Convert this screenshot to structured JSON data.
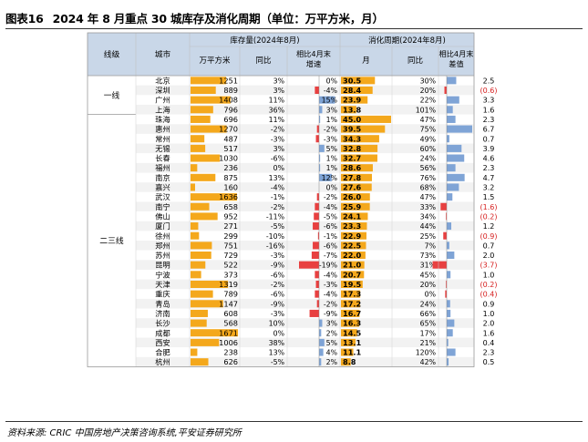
{
  "title": {
    "number": "图表16",
    "text": "2024 年 8 月重点 30 城库存及消化周期（单位：万平方米，月）"
  },
  "source": "资料来源: CRIC 中国房地产决策咨询系统,平安证券研究所",
  "colors": {
    "header_bg": "#c9d7e8",
    "row_alt": "#f2f2f2",
    "bar_orange": "#f4a81c",
    "bar_red": "#e84040",
    "bar_blue": "#7fa4d6",
    "neg_text": "#d62020",
    "grid": "#c0c0c0"
  },
  "headers": {
    "tier": "线级",
    "city": "城市",
    "inventory_group": "库存量(2024年8月)",
    "inv_value": "万平方米",
    "inv_yoy": "同比",
    "inv_change": "相比4月末增速",
    "cycle_group": "消化周期(2024年8月)",
    "cycle_value": "月",
    "cycle_yoy": "同比",
    "cycle_diff": "相比4月末差值"
  },
  "tiers": [
    {
      "label": "一线",
      "rows": 4
    },
    {
      "label": "二三线",
      "rows": 26
    }
  ],
  "chart_data": {
    "type": "table",
    "title": "2024 年 8 月重点 30 城库存及消化周期（单位：万平方米，月）",
    "columns": [
      "城市",
      "万平方米",
      "同比",
      "相比4月末增速",
      "月",
      "同比",
      "相比4月末差值"
    ],
    "rows": [
      {
        "tier": "一线",
        "city": "北京",
        "inv": 1251,
        "inv_yoy": "3%",
        "inv_chg": "0%",
        "inv_chg_v": 0,
        "cyc": "30.5",
        "cyc_v": 30.5,
        "cyc_yoy": "30%",
        "cyc_diff": "2.5",
        "cyc_diff_v": 2.5
      },
      {
        "tier": "一线",
        "city": "深圳",
        "inv": 889,
        "inv_yoy": "3%",
        "inv_chg": "-4%",
        "inv_chg_v": -4,
        "cyc": "28.4",
        "cyc_v": 28.4,
        "cyc_yoy": "20%",
        "cyc_diff": "(0.6)",
        "cyc_diff_v": -0.6
      },
      {
        "tier": "一线",
        "city": "广州",
        "inv": 1408,
        "inv_yoy": "11%",
        "inv_chg": "15%",
        "inv_chg_v": 15,
        "cyc": "23.9",
        "cyc_v": 23.9,
        "cyc_yoy": "22%",
        "cyc_diff": "3.3",
        "cyc_diff_v": 3.3
      },
      {
        "tier": "一线",
        "city": "上海",
        "inv": 796,
        "inv_yoy": "36%",
        "inv_chg": "3%",
        "inv_chg_v": 3,
        "cyc": "13.8",
        "cyc_v": 13.8,
        "cyc_yoy": "101%",
        "cyc_diff": "1.6",
        "cyc_diff_v": 1.6
      },
      {
        "tier": "二三线",
        "city": "珠海",
        "inv": 696,
        "inv_yoy": "11%",
        "inv_chg": "1%",
        "inv_chg_v": 1,
        "cyc": "45.0",
        "cyc_v": 45.0,
        "cyc_yoy": "47%",
        "cyc_diff": "2.3",
        "cyc_diff_v": 2.3
      },
      {
        "tier": "二三线",
        "city": "惠州",
        "inv": 1270,
        "inv_yoy": "-2%",
        "inv_chg": "-2%",
        "inv_chg_v": -2,
        "cyc": "39.5",
        "cyc_v": 39.5,
        "cyc_yoy": "75%",
        "cyc_diff": "6.7",
        "cyc_diff_v": 6.7
      },
      {
        "tier": "二三线",
        "city": "常州",
        "inv": 487,
        "inv_yoy": "-3%",
        "inv_chg": "-3%",
        "inv_chg_v": -3,
        "cyc": "34.3",
        "cyc_v": 34.3,
        "cyc_yoy": "49%",
        "cyc_diff": "0.7",
        "cyc_diff_v": 0.7
      },
      {
        "tier": "二三线",
        "city": "无锡",
        "inv": 517,
        "inv_yoy": "3%",
        "inv_chg": "5%",
        "inv_chg_v": 5,
        "cyc": "32.8",
        "cyc_v": 32.8,
        "cyc_yoy": "60%",
        "cyc_diff": "3.9",
        "cyc_diff_v": 3.9
      },
      {
        "tier": "二三线",
        "city": "长春",
        "inv": 1030,
        "inv_yoy": "-6%",
        "inv_chg": "1%",
        "inv_chg_v": 1,
        "cyc": "32.7",
        "cyc_v": 32.7,
        "cyc_yoy": "24%",
        "cyc_diff": "4.6",
        "cyc_diff_v": 4.6
      },
      {
        "tier": "二三线",
        "city": "福州",
        "inv": 236,
        "inv_yoy": "0%",
        "inv_chg": "1%",
        "inv_chg_v": 1,
        "cyc": "28.6",
        "cyc_v": 28.6,
        "cyc_yoy": "56%",
        "cyc_diff": "2.3",
        "cyc_diff_v": 2.3
      },
      {
        "tier": "二三线",
        "city": "南京",
        "inv": 875,
        "inv_yoy": "13%",
        "inv_chg": "12%",
        "inv_chg_v": 12,
        "cyc": "27.8",
        "cyc_v": 27.8,
        "cyc_yoy": "76%",
        "cyc_diff": "4.7",
        "cyc_diff_v": 4.7
      },
      {
        "tier": "二三线",
        "city": "嘉兴",
        "inv": 160,
        "inv_yoy": "-4%",
        "inv_chg": "0%",
        "inv_chg_v": 0,
        "cyc": "27.6",
        "cyc_v": 27.6,
        "cyc_yoy": "68%",
        "cyc_diff": "3.2",
        "cyc_diff_v": 3.2
      },
      {
        "tier": "二三线",
        "city": "武汉",
        "inv": 1636,
        "inv_yoy": "-1%",
        "inv_chg": "-2%",
        "inv_chg_v": -2,
        "cyc": "26.0",
        "cyc_v": 26.0,
        "cyc_yoy": "47%",
        "cyc_diff": "1.5",
        "cyc_diff_v": 1.5
      },
      {
        "tier": "二三线",
        "city": "南宁",
        "inv": 658,
        "inv_yoy": "-2%",
        "inv_chg": "-4%",
        "inv_chg_v": -4,
        "cyc": "25.9",
        "cyc_v": 25.9,
        "cyc_yoy": "33%",
        "cyc_diff": "(1.6)",
        "cyc_diff_v": -1.6
      },
      {
        "tier": "二三线",
        "city": "佛山",
        "inv": 952,
        "inv_yoy": "-11%",
        "inv_chg": "-5%",
        "inv_chg_v": -5,
        "cyc": "24.1",
        "cyc_v": 24.1,
        "cyc_yoy": "34%",
        "cyc_diff": "(0.2)",
        "cyc_diff_v": -0.2
      },
      {
        "tier": "二三线",
        "city": "厦门",
        "inv": 271,
        "inv_yoy": "-5%",
        "inv_chg": "-6%",
        "inv_chg_v": -6,
        "cyc": "23.3",
        "cyc_v": 23.3,
        "cyc_yoy": "44%",
        "cyc_diff": "1.2",
        "cyc_diff_v": 1.2
      },
      {
        "tier": "二三线",
        "city": "徐州",
        "inv": 299,
        "inv_yoy": "-10%",
        "inv_chg": "-1%",
        "inv_chg_v": -1,
        "cyc": "22.9",
        "cyc_v": 22.9,
        "cyc_yoy": "25%",
        "cyc_diff": "(0.9)",
        "cyc_diff_v": -0.9
      },
      {
        "tier": "二三线",
        "city": "郑州",
        "inv": 751,
        "inv_yoy": "-16%",
        "inv_chg": "-6%",
        "inv_chg_v": -6,
        "cyc": "22.5",
        "cyc_v": 22.5,
        "cyc_yoy": "7%",
        "cyc_diff": "0.7",
        "cyc_diff_v": 0.7
      },
      {
        "tier": "二三线",
        "city": "苏州",
        "inv": 729,
        "inv_yoy": "-3%",
        "inv_chg": "-7%",
        "inv_chg_v": -7,
        "cyc": "22.0",
        "cyc_v": 22.0,
        "cyc_yoy": "73%",
        "cyc_diff": "2.0",
        "cyc_diff_v": 2.0
      },
      {
        "tier": "二三线",
        "city": "昆明",
        "inv": 522,
        "inv_yoy": "-9%",
        "inv_chg": "-19%",
        "inv_chg_v": -19,
        "cyc": "21.0",
        "cyc_v": 21.0,
        "cyc_yoy": "31%",
        "cyc_diff": "(3.7)",
        "cyc_diff_v": -3.7
      },
      {
        "tier": "二三线",
        "city": "宁波",
        "inv": 373,
        "inv_yoy": "-6%",
        "inv_chg": "-4%",
        "inv_chg_v": -4,
        "cyc": "20.7",
        "cyc_v": 20.7,
        "cyc_yoy": "45%",
        "cyc_diff": "1.0",
        "cyc_diff_v": 1.0
      },
      {
        "tier": "二三线",
        "city": "天津",
        "inv": 1319,
        "inv_yoy": "-2%",
        "inv_chg": "-3%",
        "inv_chg_v": -3,
        "cyc": "19.5",
        "cyc_v": 19.5,
        "cyc_yoy": "20%",
        "cyc_diff": "(0.2)",
        "cyc_diff_v": -0.2
      },
      {
        "tier": "二三线",
        "city": "重庆",
        "inv": 789,
        "inv_yoy": "-6%",
        "inv_chg": "-4%",
        "inv_chg_v": -4,
        "cyc": "17.3",
        "cyc_v": 17.3,
        "cyc_yoy": "0%",
        "cyc_diff": "(0.4)",
        "cyc_diff_v": -0.4
      },
      {
        "tier": "二三线",
        "city": "青岛",
        "inv": 1147,
        "inv_yoy": "-9%",
        "inv_chg": "-2%",
        "inv_chg_v": -2,
        "cyc": "17.2",
        "cyc_v": 17.2,
        "cyc_yoy": "24%",
        "cyc_diff": "0.9",
        "cyc_diff_v": 0.9
      },
      {
        "tier": "二三线",
        "city": "济南",
        "inv": 608,
        "inv_yoy": "-3%",
        "inv_chg": "-9%",
        "inv_chg_v": -9,
        "cyc": "16.7",
        "cyc_v": 16.7,
        "cyc_yoy": "66%",
        "cyc_diff": "1.0",
        "cyc_diff_v": 1.0
      },
      {
        "tier": "二三线",
        "city": "长沙",
        "inv": 568,
        "inv_yoy": "10%",
        "inv_chg": "3%",
        "inv_chg_v": 3,
        "cyc": "16.3",
        "cyc_v": 16.3,
        "cyc_yoy": "65%",
        "cyc_diff": "2.0",
        "cyc_diff_v": 2.0
      },
      {
        "tier": "二三线",
        "city": "成都",
        "inv": 1671,
        "inv_yoy": "0%",
        "inv_chg": "2%",
        "inv_chg_v": 2,
        "cyc": "14.5",
        "cyc_v": 14.5,
        "cyc_yoy": "17%",
        "cyc_diff": "1.6",
        "cyc_diff_v": 1.6
      },
      {
        "tier": "二三线",
        "city": "西安",
        "inv": 1006,
        "inv_yoy": "38%",
        "inv_chg": "5%",
        "inv_chg_v": 5,
        "cyc": "13.1",
        "cyc_v": 13.1,
        "cyc_yoy": "21%",
        "cyc_diff": "0.4",
        "cyc_diff_v": 0.4
      },
      {
        "tier": "二三线",
        "city": "合肥",
        "inv": 238,
        "inv_yoy": "13%",
        "inv_chg": "4%",
        "inv_chg_v": 4,
        "cyc": "11.1",
        "cyc_v": 11.1,
        "cyc_yoy": "120%",
        "cyc_diff": "2.3",
        "cyc_diff_v": 2.3
      },
      {
        "tier": "二三线",
        "city": "杭州",
        "inv": 626,
        "inv_yoy": "-5%",
        "inv_chg": "2%",
        "inv_chg_v": 2,
        "cyc": "8.8",
        "cyc_v": 8.8,
        "cyc_yoy": "42%",
        "cyc_diff": "0.5",
        "cyc_diff_v": 0.5
      }
    ]
  }
}
